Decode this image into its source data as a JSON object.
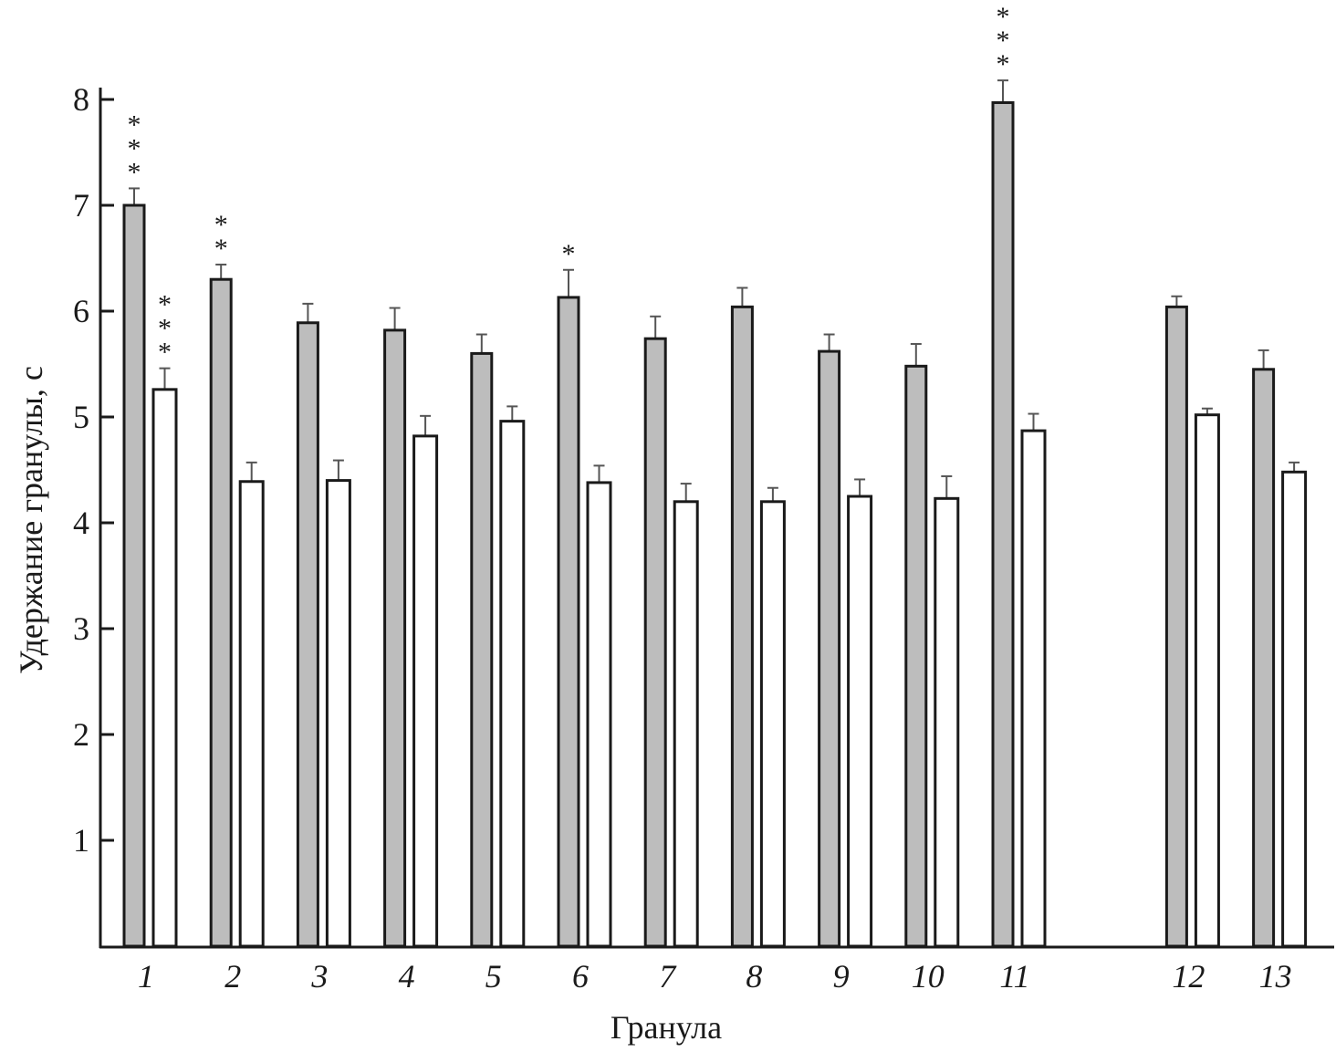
{
  "chart_data": {
    "type": "bar",
    "title": "",
    "xlabel": "Гранула",
    "ylabel": "Удержание гранулы, с",
    "ylim": [
      0,
      8
    ],
    "yticks": [
      "1",
      "2",
      "3",
      "4",
      "5",
      "6",
      "7",
      "8"
    ],
    "categories": [
      "1",
      "2",
      "3",
      "4",
      "5",
      "6",
      "7",
      "8",
      "9",
      "10",
      "11",
      "12",
      "13"
    ],
    "series": [
      {
        "name": "gray",
        "color": "#bdbdbd",
        "values": [
          7.0,
          6.3,
          5.89,
          5.82,
          5.6,
          6.13,
          5.74,
          6.04,
          5.62,
          5.48,
          7.97,
          6.04,
          5.45
        ],
        "errors": [
          0.16,
          0.14,
          0.18,
          0.21,
          0.18,
          0.26,
          0.21,
          0.18,
          0.16,
          0.21,
          0.21,
          0.1,
          0.18
        ],
        "significance": [
          "***",
          "**",
          "",
          "",
          "",
          "*",
          "",
          "",
          "",
          "",
          "***",
          "",
          ""
        ]
      },
      {
        "name": "white",
        "color": "#ffffff",
        "values": [
          5.26,
          4.39,
          4.4,
          4.82,
          4.96,
          4.38,
          4.2,
          4.2,
          4.25,
          4.23,
          4.87,
          5.02,
          4.48
        ],
        "errors": [
          0.2,
          0.18,
          0.19,
          0.19,
          0.14,
          0.16,
          0.17,
          0.13,
          0.16,
          0.21,
          0.16,
          0.06,
          0.09
        ],
        "significance": [
          "***",
          "",
          "",
          "",
          "",
          "",
          "",
          "",
          "",
          "",
          "",
          "",
          ""
        ]
      }
    ],
    "grid": false,
    "legend": "none"
  }
}
